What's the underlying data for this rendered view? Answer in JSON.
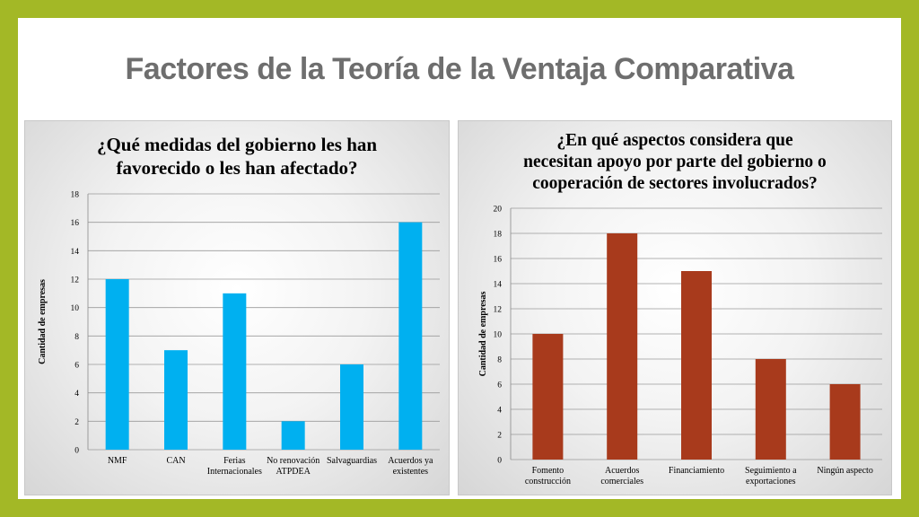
{
  "slide": {
    "title": "Factores de la Teoría de la Ventaja Comparativa"
  },
  "chart_data": [
    {
      "type": "bar",
      "title_lines": [
        "¿Qué medidas del gobierno les han",
        "favorecido o les han afectado?"
      ],
      "ylabel": "Cantidad de empresas",
      "xlabel": "",
      "ylim": [
        0,
        18
      ],
      "yticks": [
        0,
        2,
        4,
        6,
        8,
        10,
        12,
        14,
        16,
        18
      ],
      "categories": [
        [
          "NMF"
        ],
        [
          "CAN"
        ],
        [
          "Ferias",
          "Internacionales"
        ],
        [
          "No renovación",
          "ATPDEA"
        ],
        [
          "Salvaguardias"
        ],
        [
          "Acuerdos ya",
          "existentes"
        ]
      ],
      "values": [
        12,
        7,
        11,
        2,
        6,
        16
      ],
      "color": "#00b0f0",
      "grid": true
    },
    {
      "type": "bar",
      "title_lines": [
        "¿En qué aspectos considera que",
        "necesitan apoyo por parte del gobierno o",
        "cooperación de sectores involucrados?"
      ],
      "ylabel": "Cantidad de empresas",
      "xlabel": "",
      "ylim": [
        0,
        20
      ],
      "yticks": [
        0,
        2,
        4,
        6,
        8,
        10,
        12,
        14,
        16,
        18,
        20
      ],
      "categories": [
        [
          "Fomento",
          "construcción"
        ],
        [
          "Acuerdos",
          "comerciales"
        ],
        [
          "Financiamiento"
        ],
        [
          "Seguimiento a",
          "exportaciones"
        ],
        [
          "Ningún aspecto"
        ]
      ],
      "values": [
        10,
        18,
        15,
        8,
        6
      ],
      "color": "#a83a1c",
      "grid": true
    }
  ]
}
